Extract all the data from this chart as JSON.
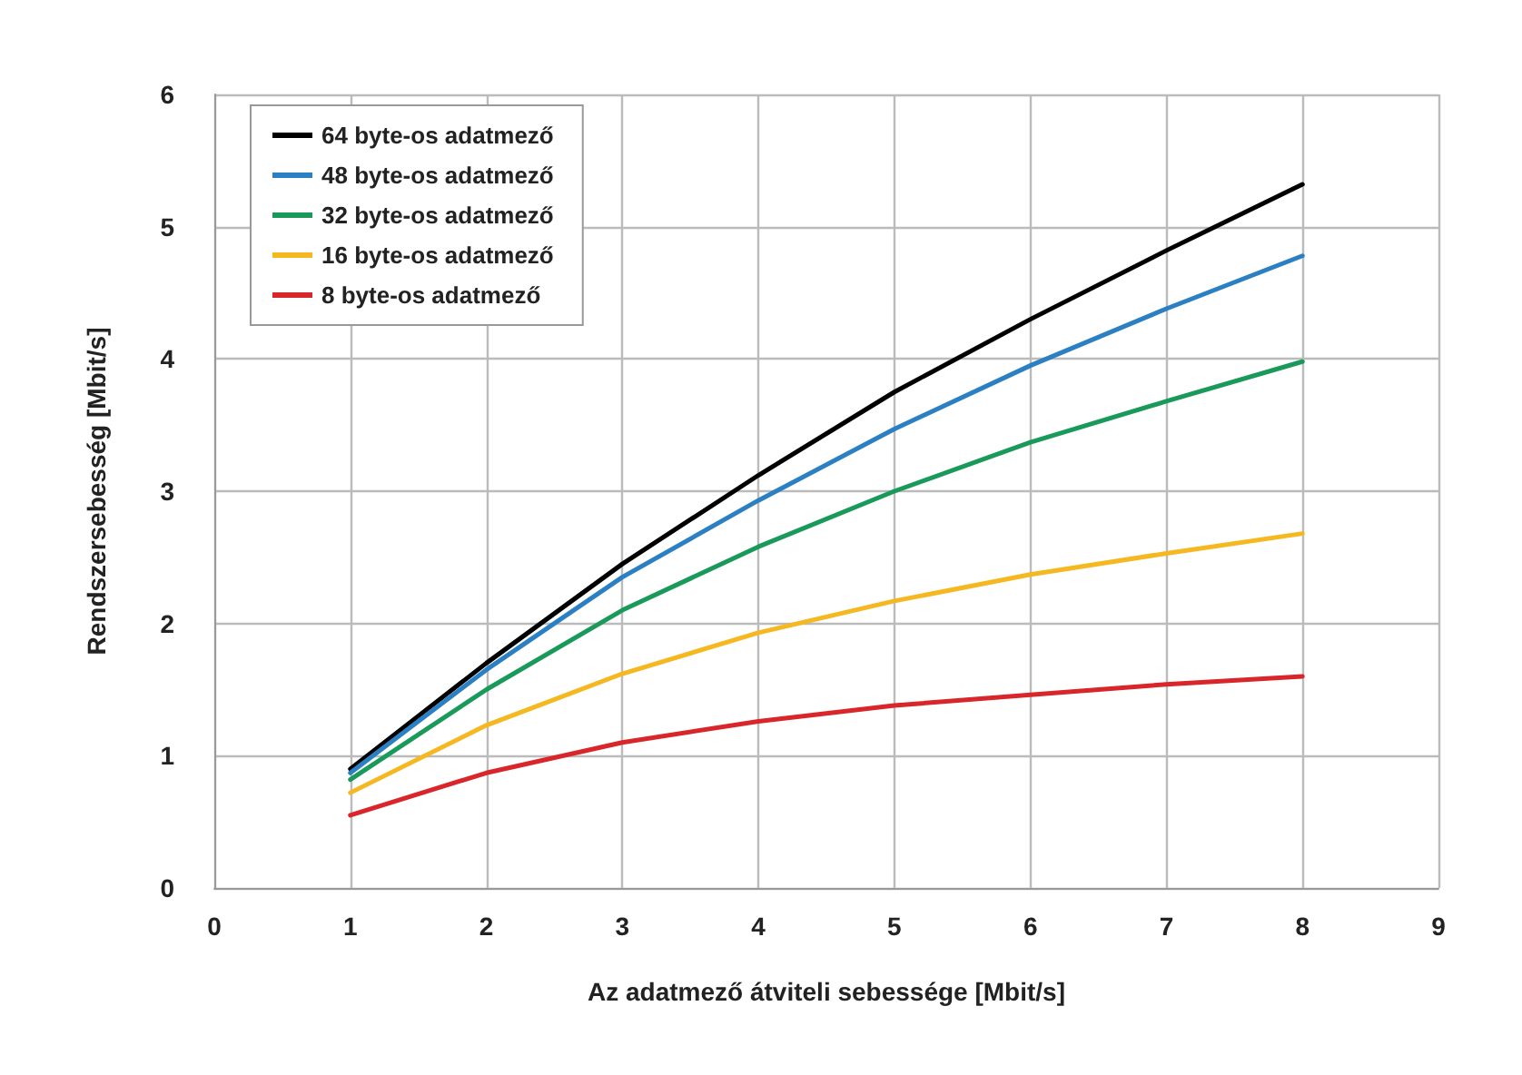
{
  "chart_data": {
    "type": "line",
    "xlabel": "Az adatmező átviteli sebessége [Mbit/s]",
    "ylabel": "Rendszersebesség [Mbit/s]",
    "x": [
      1,
      2,
      3,
      4,
      5,
      6,
      7,
      8
    ],
    "series": [
      {
        "name": "64 byte-os adatmező",
        "color": "#000000",
        "values": [
          0.9,
          1.7,
          2.45,
          3.12,
          3.75,
          4.3,
          4.82,
          5.32
        ]
      },
      {
        "name": "48 byte-os adatmező",
        "color": "#2b7fc3",
        "values": [
          0.87,
          1.65,
          2.35,
          2.93,
          3.47,
          3.95,
          4.38,
          4.78
        ]
      },
      {
        "name": "32 byte-os adatmező",
        "color": "#1a9a5a",
        "values": [
          0.82,
          1.5,
          2.1,
          2.58,
          3.0,
          3.37,
          3.68,
          3.98
        ]
      },
      {
        "name": "16 byte-os adatmező",
        "color": "#f5b820",
        "values": [
          0.72,
          1.23,
          1.62,
          1.93,
          2.17,
          2.37,
          2.53,
          2.68
        ]
      },
      {
        "name": "8 byte-os adatmező",
        "color": "#d9262a",
        "values": [
          0.55,
          0.87,
          1.1,
          1.26,
          1.38,
          1.46,
          1.54,
          1.6
        ]
      }
    ],
    "xlim": [
      0,
      9
    ],
    "xticks": [
      0,
      1,
      2,
      3,
      4,
      5,
      6,
      7,
      8,
      9
    ],
    "ylim": [
      0,
      6
    ],
    "yticks": [
      0,
      1,
      2,
      3,
      4,
      5,
      6
    ],
    "grid": true,
    "legend": "top left",
    "marker": "none",
    "line_style": "solid"
  }
}
